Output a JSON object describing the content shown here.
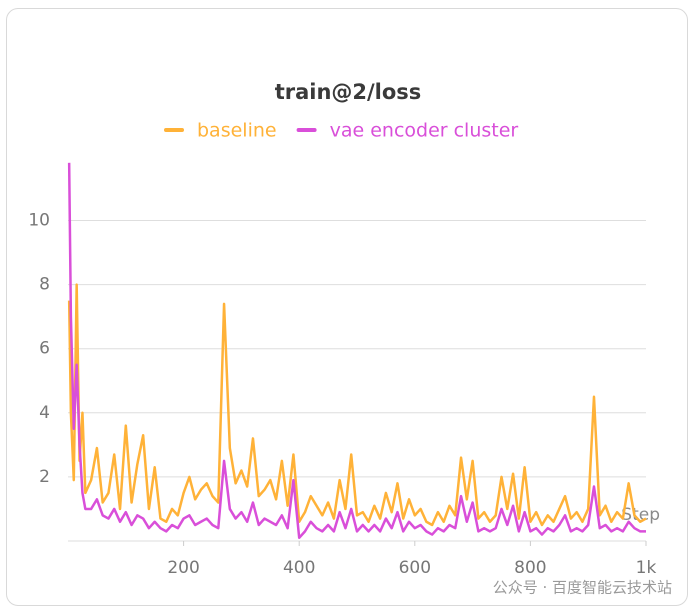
{
  "chart_data": {
    "type": "line",
    "title": "train@2/loss",
    "x_label": "Step",
    "watermark": "公众号 · 百度智能云技术站",
    "x": [
      2,
      5,
      10,
      15,
      20,
      25,
      30,
      40,
      50,
      60,
      70,
      80,
      90,
      100,
      110,
      120,
      130,
      140,
      150,
      160,
      170,
      180,
      190,
      200,
      210,
      220,
      230,
      240,
      250,
      260,
      270,
      280,
      290,
      300,
      310,
      320,
      330,
      340,
      350,
      360,
      370,
      380,
      390,
      400,
      410,
      420,
      430,
      440,
      450,
      460,
      470,
      480,
      490,
      500,
      510,
      520,
      530,
      540,
      550,
      560,
      570,
      580,
      590,
      600,
      610,
      620,
      630,
      640,
      650,
      660,
      670,
      680,
      690,
      700,
      710,
      720,
      730,
      740,
      750,
      760,
      770,
      780,
      790,
      800,
      810,
      820,
      830,
      840,
      850,
      860,
      870,
      880,
      890,
      900,
      910,
      920,
      930,
      940,
      950,
      960,
      970,
      980,
      990,
      1000
    ],
    "series": [
      {
        "name": "baseline",
        "color": "#ffb238",
        "values": [
          7.5,
          4,
          1.9,
          8,
          2.5,
          4,
          1.5,
          1.9,
          2.9,
          1.2,
          1.5,
          2.7,
          1.0,
          3.6,
          1.2,
          2.4,
          3.3,
          1.0,
          2.3,
          0.7,
          0.6,
          1.0,
          0.8,
          1.5,
          2.0,
          1.3,
          1.6,
          1.8,
          1.4,
          1.2,
          7.4,
          2.9,
          1.8,
          2.2,
          1.7,
          3.2,
          1.4,
          1.6,
          1.9,
          1.3,
          2.5,
          1.1,
          2.7,
          0.6,
          0.9,
          1.4,
          1.1,
          0.8,
          1.2,
          0.7,
          1.9,
          1.0,
          2.7,
          0.8,
          0.9,
          0.6,
          1.1,
          0.7,
          1.5,
          0.9,
          1.8,
          0.7,
          1.3,
          0.8,
          1.0,
          0.6,
          0.5,
          0.9,
          0.6,
          1.1,
          0.8,
          2.6,
          1.3,
          2.5,
          0.7,
          0.9,
          0.6,
          0.8,
          2.0,
          1.0,
          2.1,
          0.7,
          2.3,
          0.6,
          0.9,
          0.5,
          0.8,
          0.6,
          1.0,
          1.4,
          0.7,
          0.9,
          0.6,
          1.0,
          4.5,
          0.8,
          1.1,
          0.6,
          0.9,
          0.7,
          1.8,
          0.8,
          0.6,
          0.7
        ]
      },
      {
        "name": "vae encoder cluster",
        "color": "#d94fd9",
        "values": [
          11.8,
          7,
          3.5,
          5.5,
          3,
          1.5,
          1.0,
          1.0,
          1.3,
          0.8,
          0.7,
          1.0,
          0.6,
          0.9,
          0.5,
          0.8,
          0.7,
          0.4,
          0.6,
          0.4,
          0.3,
          0.5,
          0.4,
          0.7,
          0.8,
          0.5,
          0.6,
          0.7,
          0.5,
          0.4,
          2.5,
          1.0,
          0.7,
          0.9,
          0.6,
          1.2,
          0.5,
          0.7,
          0.6,
          0.5,
          0.8,
          0.4,
          1.9,
          0.1,
          0.3,
          0.6,
          0.4,
          0.3,
          0.5,
          0.3,
          0.9,
          0.4,
          1.0,
          0.3,
          0.5,
          0.3,
          0.5,
          0.3,
          0.7,
          0.4,
          0.9,
          0.3,
          0.6,
          0.4,
          0.5,
          0.3,
          0.2,
          0.4,
          0.3,
          0.5,
          0.4,
          1.4,
          0.6,
          1.2,
          0.3,
          0.4,
          0.3,
          0.4,
          1.0,
          0.5,
          1.1,
          0.3,
          0.9,
          0.3,
          0.4,
          0.2,
          0.4,
          0.3,
          0.5,
          0.8,
          0.3,
          0.4,
          0.3,
          0.5,
          1.7,
          0.4,
          0.5,
          0.3,
          0.4,
          0.3,
          0.6,
          0.4,
          0.3,
          0.3
        ]
      }
    ],
    "xlim": [
      0,
      1000
    ],
    "xticks": [
      200,
      400,
      600,
      800,
      {
        "value": 1000,
        "label": "1k"
      }
    ],
    "ylim": [
      0,
      12.2
    ],
    "yticks": [
      2,
      4,
      6,
      8,
      10
    ],
    "grid": true
  }
}
